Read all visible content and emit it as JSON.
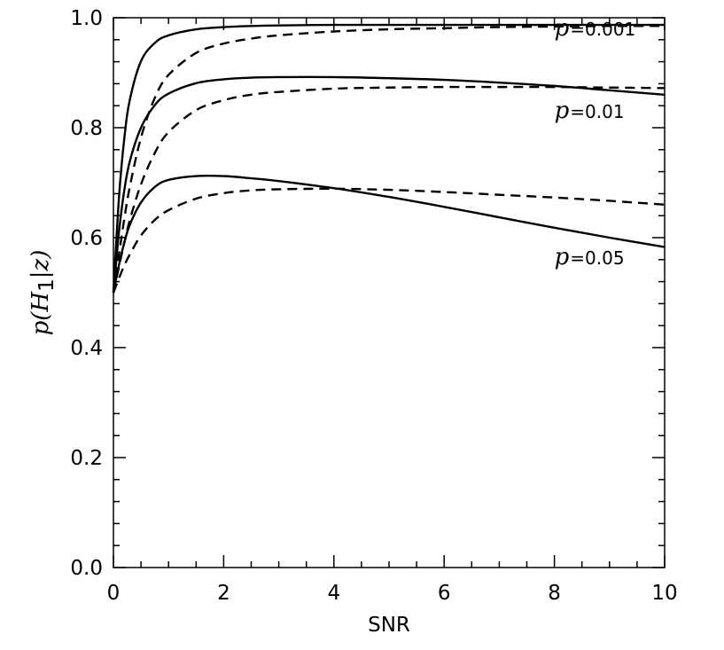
{
  "chart_data": {
    "type": "line",
    "title": "",
    "xlabel": "SNR",
    "ylabel": {
      "prefix": "p(H",
      "subscript": "1",
      "suffix": "|z)"
    },
    "xlim": [
      0,
      10
    ],
    "ylim": [
      0.0,
      1.0
    ],
    "x_ticks": [
      0,
      2,
      4,
      6,
      8,
      10
    ],
    "x_tick_labels": [
      "0",
      "2",
      "4",
      "6",
      "8",
      "10"
    ],
    "y_ticks": [
      0.0,
      0.2,
      0.4,
      0.6,
      0.8,
      1.0
    ],
    "y_tick_labels": [
      "0.0",
      "0.2",
      "0.4",
      "0.6",
      "0.8",
      "1.0"
    ],
    "grid": false,
    "line_color": "#000000",
    "x": [
      0,
      0.1,
      0.2,
      0.3,
      0.5,
      0.75,
      1.0,
      1.5,
      2.0,
      2.5,
      3.0,
      4.0,
      5.0,
      6.0,
      7.0,
      8.0,
      9.0,
      10.0
    ],
    "series": [
      {
        "style": "solid",
        "values": [
          0.5,
          0.672,
          0.783,
          0.852,
          0.921,
          0.954,
          0.968,
          0.979,
          0.983,
          0.985,
          0.986,
          0.987,
          0.987,
          0.987,
          0.987,
          0.987,
          0.987,
          0.987
        ]
      },
      {
        "style": "dashed",
        "values": [
          0.5,
          0.569,
          0.636,
          0.694,
          0.782,
          0.854,
          0.896,
          0.936,
          0.953,
          0.962,
          0.968,
          0.975,
          0.979,
          0.981,
          0.983,
          0.984,
          0.985,
          0.985
        ]
      },
      {
        "style": "solid",
        "values": [
          0.5,
          0.61,
          0.688,
          0.74,
          0.8,
          0.841,
          0.862,
          0.881,
          0.888,
          0.891,
          0.892,
          0.892,
          0.89,
          0.887,
          0.882,
          0.876,
          0.868,
          0.86
        ]
      },
      {
        "style": "dashed",
        "values": [
          0.5,
          0.547,
          0.592,
          0.633,
          0.697,
          0.754,
          0.792,
          0.832,
          0.85,
          0.86,
          0.865,
          0.871,
          0.873,
          0.874,
          0.874,
          0.874,
          0.873,
          0.872
        ]
      },
      {
        "style": "solid",
        "values": [
          0.5,
          0.55,
          0.592,
          0.624,
          0.664,
          0.692,
          0.705,
          0.712,
          0.712,
          0.708,
          0.703,
          0.69,
          0.674,
          0.656,
          0.637,
          0.618,
          0.6,
          0.583
        ]
      },
      {
        "style": "dashed",
        "values": [
          0.5,
          0.526,
          0.55,
          0.57,
          0.604,
          0.632,
          0.65,
          0.671,
          0.681,
          0.686,
          0.688,
          0.689,
          0.687,
          0.683,
          0.678,
          0.673,
          0.667,
          0.66
        ]
      }
    ],
    "annotations": [
      {
        "symbol": "p",
        "value": "=0.001",
        "x": 8.0,
        "y": 0.968
      },
      {
        "symbol": "p",
        "value": "=0.01",
        "x": 8.0,
        "y": 0.818
      },
      {
        "symbol": "p",
        "value": "=0.05",
        "x": 8.0,
        "y": 0.552
      }
    ]
  }
}
